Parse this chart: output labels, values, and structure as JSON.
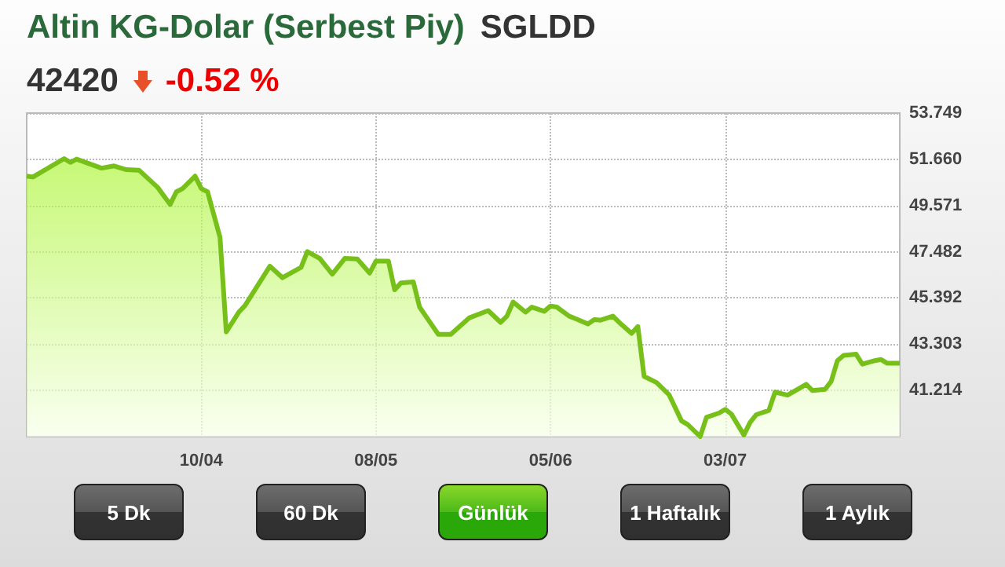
{
  "chart_data": {
    "type": "area",
    "title": "Altin KG-Dolar (Serbest Piy)",
    "subtitle": "SGLDD",
    "annotations": [
      "42420",
      "-0.52 %",
      "5 Dk",
      "60 Dk",
      "Günlük",
      "1 Haftalık",
      "1 Aylık"
    ],
    "x": [
      "--03-13",
      "--03-14",
      "--03-19",
      "--03-20",
      "--03-21",
      "--03-25",
      "--03-27",
      "--03-29",
      "--03-31",
      "--04-03",
      "--04-05",
      "--04-06",
      "--04-07",
      "--04-09",
      "--04-10",
      "--04-11",
      "--04-13",
      "--04-14",
      "--04-16",
      "--04-17",
      "--04-21",
      "--04-23",
      "--04-26",
      "--04-27",
      "--04-29",
      "--05-01",
      "--05-03",
      "--05-05",
      "--05-07",
      "--05-08",
      "--05-10",
      "--05-11",
      "--05-12",
      "--05-14",
      "--05-15",
      "--05-16",
      "--05-18",
      "--05-20",
      "--05-23",
      "--05-26",
      "--05-28",
      "--05-29",
      "--05-30",
      "--06-01",
      "--06-02",
      "--06-04",
      "--06-05",
      "--06-06",
      "--06-08",
      "--06-09",
      "--06-11",
      "--06-12",
      "--06-13",
      "--06-15",
      "--06-16",
      "--06-18",
      "--06-19",
      "--06-20",
      "--06-22",
      "--06-24",
      "--06-26",
      "--06-27",
      "--06-29",
      "--06-30",
      "--07-02",
      "--07-03",
      "--07-04",
      "--07-06",
      "--07-07",
      "--07-08",
      "--07-10",
      "--07-11",
      "--07-13",
      "--07-16",
      "--07-17",
      "--07-19",
      "--07-20",
      "--07-21",
      "--07-22",
      "--07-24",
      "--07-25",
      "--07-27",
      "--07-28",
      "--07-29",
      "--07-31"
    ],
    "series": [
      {
        "color": "#77c01a",
        "values": [
          50.9,
          50.86,
          51.69,
          51.52,
          51.67,
          51.26,
          51.36,
          51.19,
          51.17,
          50.39,
          49.62,
          50.19,
          50.34,
          50.9,
          50.34,
          50.19,
          48.13,
          43.86,
          44.75,
          45.05,
          46.83,
          46.31,
          46.78,
          47.49,
          47.18,
          46.47,
          47.18,
          47.16,
          46.52,
          47.06,
          47.06,
          45.76,
          46.07,
          46.12,
          44.98,
          44.57,
          43.75,
          43.75,
          44.5,
          44.82,
          44.29,
          44.57,
          45.21,
          44.75,
          44.98,
          44.79,
          45.03,
          44.98,
          44.57,
          44.46,
          44.22,
          44.41,
          44.39,
          44.57,
          44.29,
          43.79,
          44.1,
          41.85,
          41.57,
          41.02,
          39.84,
          39.67,
          39.13,
          40.0,
          40.19,
          40.36,
          40.14,
          39.2,
          39.77,
          40.12,
          40.31,
          41.14,
          41.0,
          41.49,
          41.21,
          41.26,
          41.62,
          42.56,
          42.8,
          42.85,
          42.4,
          42.56,
          42.61,
          42.44,
          42.44
        ]
      }
    ],
    "xlim": [
      "--03-13",
      "--07-31"
    ],
    "xticks": [
      {
        "value": "--04-10",
        "label": "10/04"
      },
      {
        "value": "--05-08",
        "label": "08/05"
      },
      {
        "value": "--06-05",
        "label": "05/06"
      },
      {
        "value": "--07-03",
        "label": "03/07"
      }
    ],
    "ylim": [
      39.125,
      53.749
    ],
    "yticks": [
      41.214,
      43.303,
      45.392,
      47.482,
      49.571,
      {
        "value": 51.66,
        "label": "51.660"
      },
      53.749
    ],
    "grid": true,
    "marker": "none",
    "line_style": "solid"
  }
}
